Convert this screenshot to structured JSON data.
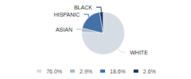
{
  "chart_data": {
    "type": "pie",
    "categories": [
      "WHITE",
      "ASIAN",
      "HISPANIC",
      "BLACK"
    ],
    "values": [
      76.0,
      2.9,
      18.6,
      2.6
    ],
    "value_labels": [
      "76.0%",
      "2.9%",
      "18.6%",
      "2.6%"
    ],
    "colors": [
      "#d6dce4",
      "#aab9cc",
      "#4472a8",
      "#1f3864"
    ],
    "legend": "bottom"
  }
}
